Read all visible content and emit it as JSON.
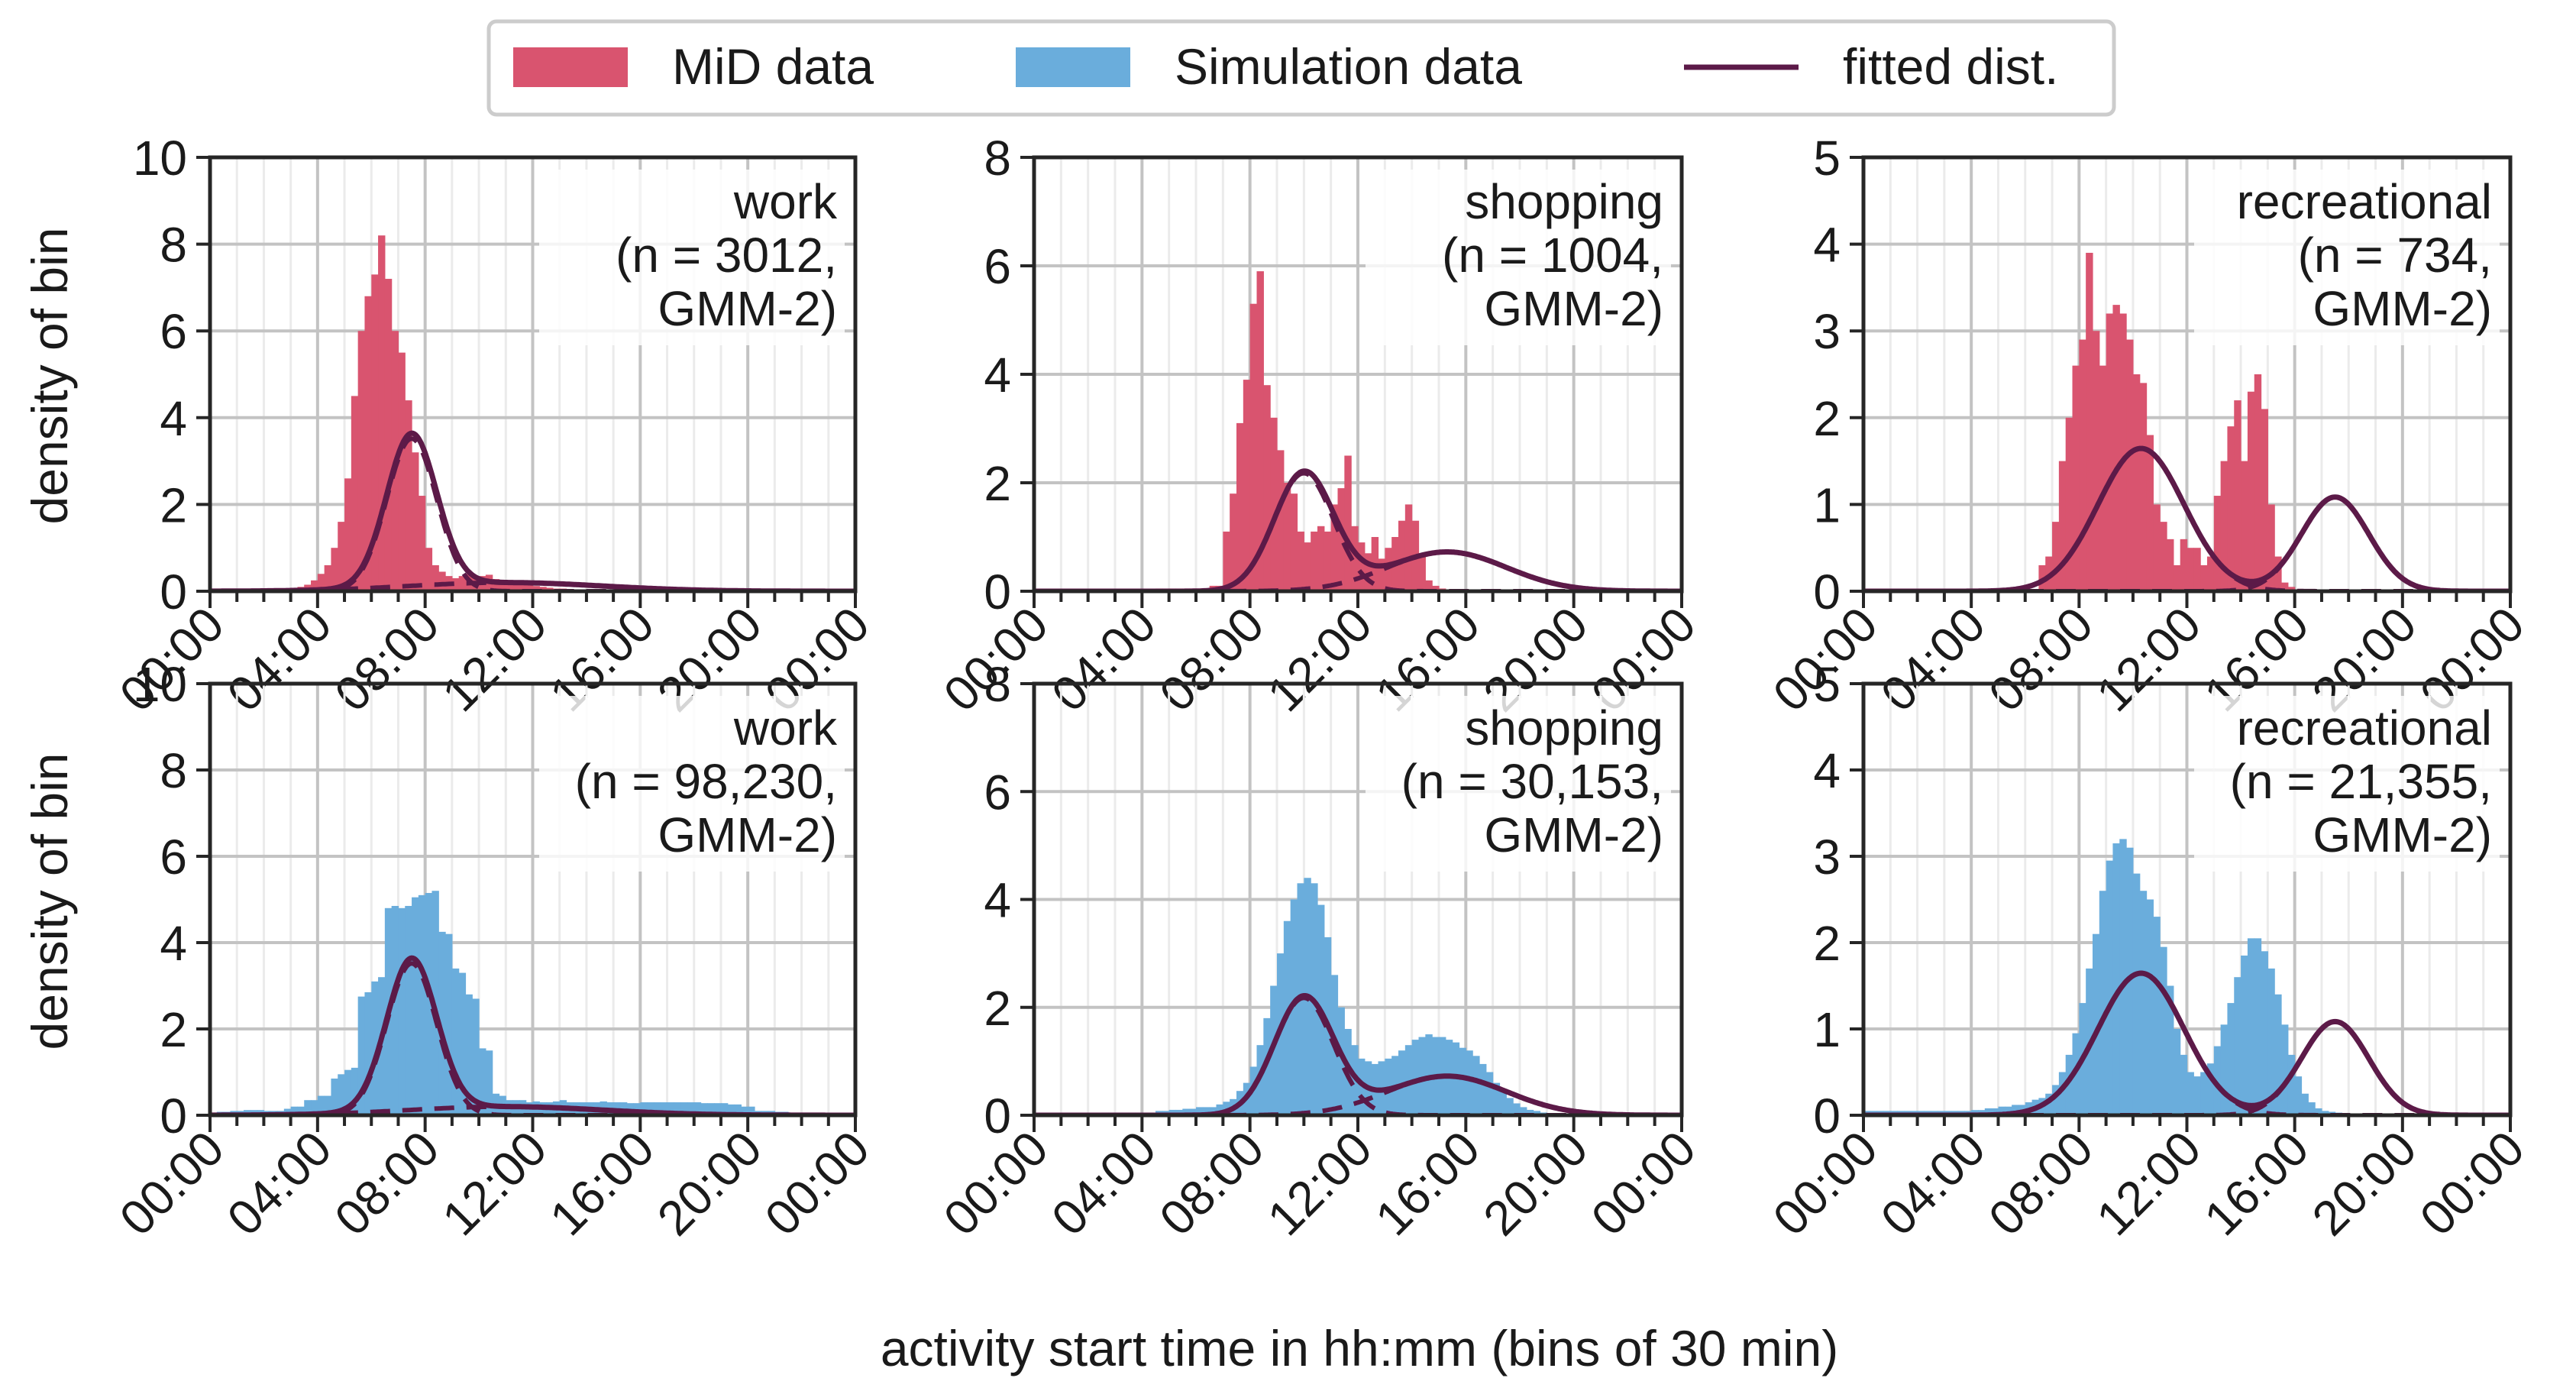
{
  "figure": {
    "legend": {
      "placement": "top-center",
      "entries": [
        {
          "label": "MiD data",
          "kind": "bar"
        },
        {
          "label": "Simulation data",
          "kind": "bar"
        },
        {
          "label": "fitted dist.",
          "kind": "line"
        }
      ]
    },
    "xlabel": "activity start time in hh:mm (bins of 30 min)",
    "colors": {
      "mid": "#d9546f",
      "sim": "#6aaddc",
      "fit": "#5c1a48",
      "grid": "#c3c3c3",
      "axis": "#262626",
      "legend_border": "#cccccc"
    }
  },
  "chart_data": [
    {
      "type": "bar",
      "panel": "mid-work",
      "series_kind": "mid",
      "title_lines": [
        "work",
        "(n = 3012,",
        "GMM-2)"
      ],
      "ylabel": "density of bin",
      "xlabel": "",
      "xlim": [
        0,
        24
      ],
      "ylim": [
        0,
        10
      ],
      "yticks": [
        0,
        2,
        4,
        6,
        8,
        10
      ],
      "xtick_labels": [
        "00:00",
        "04:00",
        "08:00",
        "12:00",
        "16:00",
        "20:00",
        "00:00"
      ],
      "grid": true,
      "bin_width_hours": 0.5,
      "values": [
        0.03,
        0.03,
        0.03,
        0.03,
        0.03,
        0.03,
        0.03,
        0.03,
        0.03,
        0.03,
        0.05,
        0.05,
        0.08,
        0.1,
        0.15,
        0.25,
        0.4,
        0.6,
        1.0,
        1.6,
        2.6,
        4.5,
        6.0,
        6.8,
        7.3,
        8.2,
        7.2,
        6.0,
        5.5,
        4.4,
        3.2,
        2.2,
        1.0,
        0.6,
        0.45,
        0.35,
        0.3,
        0.35,
        0.4,
        0.3,
        0.35,
        0.38,
        0.28,
        0.25,
        0.22,
        0.2,
        0.15,
        0.15,
        0.12,
        0.1,
        0.08,
        0.06,
        0.06,
        0.04,
        0.04,
        0.03,
        0.03,
        0.02,
        0.02,
        0.02,
        0.02,
        0.01,
        0.01,
        0.01,
        0.01,
        0.01,
        0.01,
        0.01,
        0.01,
        0.01,
        0.01,
        0.01,
        0.01,
        0.01,
        0.01,
        0.01,
        0.01,
        0.01,
        0.01,
        0.01,
        0.01,
        0.01,
        0.01,
        0.01,
        0.01,
        0.01,
        0.01,
        0.01,
        0.01,
        0.01,
        0.01,
        0.01,
        0.01,
        0.01,
        0.01,
        0.01
      ],
      "fit": {
        "components": [
          {
            "weight": 0.82,
            "mean": 7.5,
            "sd": 0.93
          },
          {
            "weight": 0.18,
            "mean": 11.0,
            "sd": 3.6
          }
        ]
      }
    },
    {
      "type": "bar",
      "panel": "mid-shopping",
      "series_kind": "mid",
      "title_lines": [
        "shopping",
        "(n = 1004,",
        "GMM-2)"
      ],
      "ylabel": "",
      "xlabel": "",
      "xlim": [
        0,
        24
      ],
      "ylim": [
        0,
        8
      ],
      "yticks": [
        0,
        2,
        4,
        6,
        8
      ],
      "xtick_labels": [
        "00:00",
        "04:00",
        "08:00",
        "12:00",
        "16:00",
        "20:00",
        "00:00"
      ],
      "grid": true,
      "bin_width_hours": 0.5,
      "values": [
        0,
        0,
        0,
        0,
        0,
        0,
        0,
        0,
        0,
        0,
        0,
        0,
        0,
        0,
        0.02,
        0.02,
        0.02,
        0.02,
        0.05,
        0.05,
        0.05,
        0.05,
        0.05,
        0.05,
        0.05,
        0.05,
        0.1,
        0.1,
        1.1,
        1.8,
        3.1,
        3.9,
        5.3,
        5.9,
        3.8,
        3.2,
        2.6,
        2.0,
        1.8,
        1.1,
        0.9,
        1.1,
        1.2,
        1.1,
        1.6,
        1.9,
        2.5,
        1.2,
        0.9,
        0.7,
        1.0,
        0.6,
        0.8,
        1.0,
        1.3,
        1.6,
        1.3,
        0.7,
        0.2,
        0.1,
        0.05,
        0.03,
        0.02,
        0.02,
        0,
        0,
        0,
        0,
        0,
        0,
        0,
        0,
        0,
        0,
        0,
        0,
        0,
        0,
        0,
        0,
        0,
        0,
        0,
        0,
        0,
        0,
        0,
        0,
        0,
        0,
        0,
        0,
        0,
        0,
        0,
        0
      ],
      "fit": {
        "components": [
          {
            "weight": 0.6,
            "mean": 10.0,
            "sd": 1.1
          },
          {
            "weight": 0.4,
            "mean": 15.3,
            "sd": 2.2
          }
        ]
      }
    },
    {
      "type": "bar",
      "panel": "mid-recreational",
      "series_kind": "mid",
      "title_lines": [
        "recreational",
        "(n = 734,",
        "GMM-2)"
      ],
      "ylabel": "",
      "xlabel": "",
      "xlim": [
        0,
        24
      ],
      "ylim": [
        0,
        5
      ],
      "yticks": [
        0,
        1,
        2,
        3,
        4,
        5
      ],
      "xtick_labels": [
        "00:00",
        "04:00",
        "08:00",
        "12:00",
        "16:00",
        "20:00",
        "00:00"
      ],
      "grid": true,
      "bin_width_hours": 0.5,
      "values": [
        0,
        0,
        0,
        0,
        0,
        0,
        0,
        0,
        0,
        0,
        0,
        0,
        0,
        0,
        0,
        0,
        0,
        0,
        0,
        0,
        0,
        0,
        0,
        0,
        0,
        0,
        0.3,
        0.4,
        0.8,
        1.5,
        2.0,
        2.6,
        2.9,
        3.9,
        3.0,
        2.6,
        3.2,
        3.3,
        3.2,
        2.9,
        2.5,
        2.4,
        1.8,
        1.0,
        0.8,
        0.6,
        0.3,
        0.6,
        0.5,
        0.5,
        0.3,
        0.4,
        1.1,
        1.5,
        1.9,
        2.2,
        1.5,
        2.3,
        2.5,
        2.1,
        1.0,
        0.4,
        0.1,
        0.05,
        0,
        0,
        0,
        0,
        0,
        0,
        0,
        0,
        0,
        0,
        0,
        0,
        0,
        0,
        0,
        0,
        0,
        0,
        0,
        0,
        0,
        0,
        0,
        0,
        0,
        0,
        0,
        0,
        0,
        0,
        0,
        0
      ],
      "fit": {
        "components": [
          {
            "weight": 0.66,
            "mean": 10.3,
            "sd": 1.6
          },
          {
            "weight": 0.34,
            "mean": 17.5,
            "sd": 1.25
          }
        ]
      }
    },
    {
      "type": "bar",
      "panel": "sim-work",
      "series_kind": "sim",
      "title_lines": [
        "work",
        "(n = 98,230,",
        "GMM-2)"
      ],
      "ylabel": "density of bin",
      "xlabel": "",
      "xlim": [
        0,
        24
      ],
      "ylim": [
        0,
        10
      ],
      "yticks": [
        0,
        2,
        4,
        6,
        8,
        10
      ],
      "xtick_labels": [
        "00:00",
        "04:00",
        "08:00",
        "12:00",
        "16:00",
        "20:00",
        "00:00"
      ],
      "grid": true,
      "bin_width_hours": 0.5,
      "values": [
        0.05,
        0.08,
        0.08,
        0.1,
        0.1,
        0.12,
        0.12,
        0.12,
        0.1,
        0.1,
        0.1,
        0.15,
        0.2,
        0.2,
        0.35,
        0.35,
        0.45,
        0.45,
        0.85,
        0.95,
        1.05,
        1.1,
        2.75,
        2.85,
        3.1,
        3.2,
        4.8,
        4.85,
        4.8,
        4.85,
        5.05,
        5.1,
        5.15,
        5.2,
        4.25,
        4.2,
        3.4,
        3.3,
        2.8,
        2.7,
        1.55,
        1.5,
        0.5,
        0.45,
        0.35,
        0.35,
        0.35,
        0.3,
        0.32,
        0.3,
        0.3,
        0.32,
        0.35,
        0.3,
        0.3,
        0.3,
        0.3,
        0.3,
        0.32,
        0.3,
        0.3,
        0.3,
        0.28,
        0.28,
        0.3,
        0.3,
        0.3,
        0.3,
        0.3,
        0.3,
        0.3,
        0.3,
        0.3,
        0.28,
        0.28,
        0.28,
        0.28,
        0.25,
        0.25,
        0.2,
        0.2,
        0.1,
        0.1,
        0.1,
        0.08,
        0.08,
        0.06,
        0.06,
        0.05,
        0.05,
        0.05,
        0.04,
        0.04,
        0.03,
        0.03,
        0.03
      ],
      "fit": {
        "components": [
          {
            "weight": 0.82,
            "mean": 7.5,
            "sd": 0.93
          },
          {
            "weight": 0.18,
            "mean": 11.0,
            "sd": 3.6
          }
        ]
      }
    },
    {
      "type": "bar",
      "panel": "sim-shopping",
      "series_kind": "sim",
      "title_lines": [
        "shopping",
        "(n = 30,153,",
        "GMM-2)"
      ],
      "ylabel": "",
      "xlabel": "",
      "xlim": [
        0,
        24
      ],
      "ylim": [
        0,
        8
      ],
      "yticks": [
        0,
        2,
        4,
        6,
        8
      ],
      "xtick_labels": [
        "00:00",
        "04:00",
        "08:00",
        "12:00",
        "16:00",
        "20:00",
        "00:00"
      ],
      "grid": true,
      "bin_width_hours": 0.5,
      "values": [
        0.02,
        0.02,
        0.02,
        0.02,
        0.02,
        0.02,
        0.02,
        0.02,
        0.02,
        0.02,
        0.05,
        0.05,
        0.05,
        0.05,
        0.05,
        0.05,
        0.05,
        0.05,
        0.08,
        0.08,
        0.1,
        0.1,
        0.12,
        0.12,
        0.15,
        0.15,
        0.15,
        0.2,
        0.25,
        0.3,
        0.45,
        0.6,
        0.9,
        1.3,
        1.8,
        2.4,
        3.0,
        3.6,
        4.0,
        4.3,
        4.4,
        4.3,
        3.9,
        3.3,
        2.6,
        2.0,
        1.6,
        1.3,
        1.05,
        1.0,
        0.95,
        1.0,
        1.05,
        1.1,
        1.2,
        1.3,
        1.4,
        1.45,
        1.5,
        1.45,
        1.45,
        1.4,
        1.35,
        1.25,
        1.2,
        1.1,
        0.95,
        0.8,
        0.6,
        0.45,
        0.32,
        0.22,
        0.15,
        0.1,
        0.08,
        0.05,
        0.04,
        0.03,
        0.02,
        0.02,
        0.01,
        0.01,
        0.01,
        0.01,
        0.01,
        0.01,
        0.01,
        0.01,
        0.01,
        0.01,
        0.01,
        0.01,
        0.01,
        0.01,
        0.01,
        0.01
      ],
      "fit": {
        "components": [
          {
            "weight": 0.6,
            "mean": 10.0,
            "sd": 1.1
          },
          {
            "weight": 0.4,
            "mean": 15.3,
            "sd": 2.2
          }
        ]
      }
    },
    {
      "type": "bar",
      "panel": "sim-recreational",
      "series_kind": "sim",
      "title_lines": [
        "recreational",
        "(n = 21,355,",
        "GMM-2)"
      ],
      "ylabel": "",
      "xlabel": "",
      "xlim": [
        0,
        24
      ],
      "ylim": [
        0,
        5
      ],
      "yticks": [
        0,
        1,
        2,
        3,
        4,
        5
      ],
      "xtick_labels": [
        "00:00",
        "04:00",
        "08:00",
        "12:00",
        "16:00",
        "20:00",
        "00:00"
      ],
      "grid": true,
      "bin_width_hours": 0.5,
      "values": [
        0.05,
        0.05,
        0.05,
        0.05,
        0.05,
        0.05,
        0.05,
        0.05,
        0.05,
        0.05,
        0.05,
        0.05,
        0.05,
        0.05,
        0.05,
        0.05,
        0.06,
        0.06,
        0.08,
        0.08,
        0.1,
        0.1,
        0.12,
        0.12,
        0.15,
        0.18,
        0.2,
        0.25,
        0.35,
        0.5,
        0.7,
        0.95,
        1.3,
        1.7,
        2.1,
        2.6,
        2.95,
        3.15,
        3.2,
        3.1,
        2.8,
        2.6,
        2.5,
        2.3,
        1.95,
        1.5,
        1.0,
        0.7,
        0.5,
        0.45,
        0.5,
        0.6,
        0.8,
        1.05,
        1.3,
        1.6,
        1.85,
        2.05,
        2.05,
        1.9,
        1.7,
        1.4,
        1.05,
        0.7,
        0.45,
        0.25,
        0.15,
        0.08,
        0.05,
        0.04,
        0.03,
        0.02,
        0.02,
        0.02,
        0.02,
        0.02,
        0.02,
        0.02,
        0.01,
        0.01,
        0.01,
        0.01,
        0.01,
        0.01,
        0.01,
        0.01,
        0.01,
        0.01,
        0.01,
        0.01,
        0.01,
        0.01,
        0.01,
        0.01,
        0.01,
        0.01
      ],
      "fit": {
        "components": [
          {
            "weight": 0.66,
            "mean": 10.3,
            "sd": 1.6
          },
          {
            "weight": 0.34,
            "mean": 17.5,
            "sd": 1.25
          }
        ]
      }
    }
  ]
}
